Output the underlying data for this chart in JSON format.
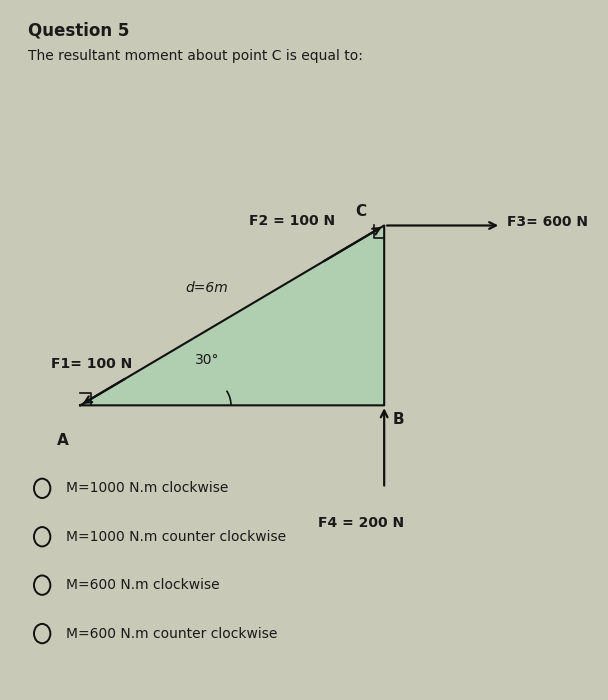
{
  "title": "Question 5",
  "subtitle": "The resultant moment about point C is equal to:",
  "bg_color": "#c9c9b8",
  "triangle_fill": "#b0cfb0",
  "point_A": [
    0.13,
    0.42
  ],
  "point_B": [
    0.65,
    0.42
  ],
  "point_C": [
    0.65,
    0.68
  ],
  "label_A": "A",
  "label_B": "B",
  "label_C": "C",
  "F1_label": "F1= 100 N",
  "F2_label": "F2 = 100 N",
  "F3_label": "F3= 600 N",
  "F4_label": "F4 = 200 N",
  "d_label": "d=6m",
  "angle_label": "30°",
  "options": [
    "M=1000 N.m clockwise",
    "M=1000 N.m counter clockwise",
    "M=600 N.m clockwise",
    "M=600 N.m counter clockwise"
  ],
  "text_color": "#1a1a1a",
  "arrow_color": "#111111",
  "title_fontsize": 12,
  "subtitle_fontsize": 10,
  "label_fontsize": 10,
  "options_fontsize": 10
}
